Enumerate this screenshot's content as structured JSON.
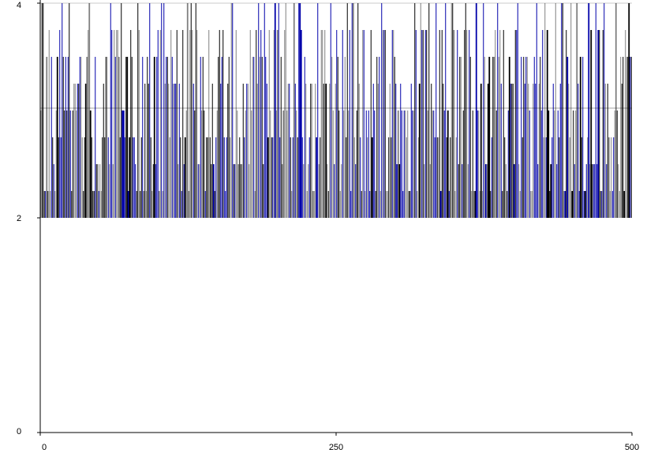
{
  "chart_data": {
    "type": "bar",
    "title": "",
    "xlabel": "",
    "ylabel": "",
    "xlim": [
      0,
      500
    ],
    "ylim": [
      0,
      4
    ],
    "x_ticks": [
      {
        "value": 0,
        "label": "0"
      },
      {
        "value": 250,
        "label": "250"
      },
      {
        "value": 500,
        "label": "500"
      }
    ],
    "y_ticks": [
      {
        "value": 0,
        "label": "0"
      },
      {
        "value": 2,
        "label": "2"
      },
      {
        "value": 4,
        "label": "4"
      }
    ],
    "grid": false,
    "legend": "none",
    "bar_base": 2,
    "x_count": 500,
    "levels": [
      2.25,
      2.5,
      2.75,
      3.0,
      3.25,
      3.5,
      3.75,
      4.0
    ],
    "series": [
      {
        "color": "#0000aa"
      },
      {
        "color": "#000000"
      },
      {
        "color": "#808080"
      }
    ]
  }
}
